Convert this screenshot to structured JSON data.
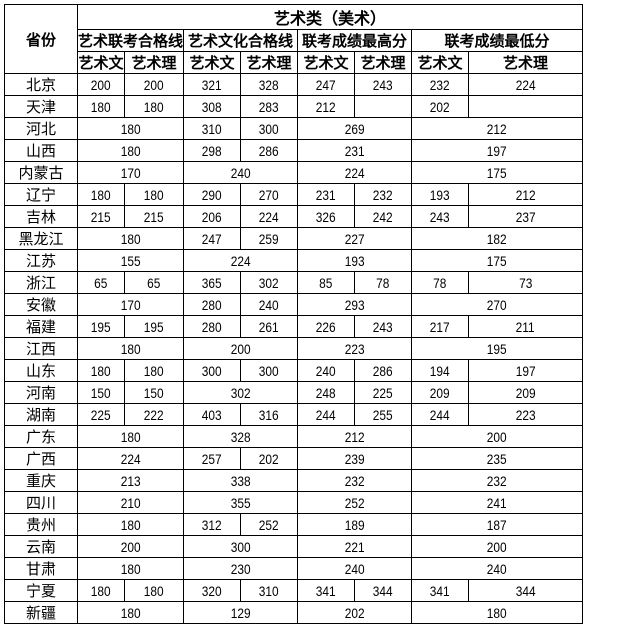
{
  "header": {
    "province_label": "省份",
    "category": "艺术类（美术）",
    "groups": [
      "艺术联考合格线",
      "艺术文化合格线",
      "联考成绩最高分",
      "联考成绩最低分"
    ],
    "sub": [
      "艺术文",
      "艺术理",
      "艺术文",
      "艺术理",
      "艺术文",
      "艺术理",
      "艺术文",
      "艺术理"
    ]
  },
  "rows": [
    {
      "province": "北京",
      "cells": [
        [
          "200",
          1
        ],
        [
          "200",
          1
        ],
        [
          "321",
          1
        ],
        [
          "328",
          1
        ],
        [
          "247",
          1
        ],
        [
          "243",
          1
        ],
        [
          "232",
          1
        ],
        [
          "224",
          1
        ]
      ]
    },
    {
      "province": "天津",
      "cells": [
        [
          "180",
          1
        ],
        [
          "180",
          1
        ],
        [
          "308",
          1
        ],
        [
          "283",
          1
        ],
        [
          "212",
          1
        ],
        [
          "",
          1
        ],
        [
          "202",
          1
        ],
        [
          "",
          1
        ]
      ]
    },
    {
      "province": "河北",
      "cells": [
        [
          "180",
          2
        ],
        [
          "310",
          1
        ],
        [
          "300",
          1
        ],
        [
          "269",
          2
        ],
        [
          "212",
          2
        ]
      ]
    },
    {
      "province": "山西",
      "cells": [
        [
          "180",
          2
        ],
        [
          "298",
          1
        ],
        [
          "286",
          1
        ],
        [
          "231",
          2
        ],
        [
          "197",
          2
        ]
      ]
    },
    {
      "province": "内蒙古",
      "cells": [
        [
          "170",
          2
        ],
        [
          "240",
          2
        ],
        [
          "224",
          2
        ],
        [
          "175",
          2
        ]
      ]
    },
    {
      "province": "辽宁",
      "cells": [
        [
          "180",
          1
        ],
        [
          "180",
          1
        ],
        [
          "290",
          1
        ],
        [
          "270",
          1
        ],
        [
          "231",
          1
        ],
        [
          "232",
          1
        ],
        [
          "193",
          1
        ],
        [
          "212",
          1
        ]
      ]
    },
    {
      "province": "吉林",
      "cells": [
        [
          "215",
          1
        ],
        [
          "215",
          1
        ],
        [
          "206",
          1
        ],
        [
          "224",
          1
        ],
        [
          "326",
          1
        ],
        [
          "242",
          1
        ],
        [
          "243",
          1
        ],
        [
          "237",
          1
        ]
      ]
    },
    {
      "province": "黑龙江",
      "cells": [
        [
          "180",
          2
        ],
        [
          "247",
          1
        ],
        [
          "259",
          1
        ],
        [
          "227",
          2
        ],
        [
          "182",
          2
        ]
      ]
    },
    {
      "province": "江苏",
      "cells": [
        [
          "155",
          2
        ],
        [
          "224",
          2
        ],
        [
          "193",
          2
        ],
        [
          "175",
          2
        ]
      ]
    },
    {
      "province": "浙江",
      "cells": [
        [
          "65",
          1
        ],
        [
          "65",
          1
        ],
        [
          "365",
          1
        ],
        [
          "302",
          1
        ],
        [
          "85",
          1
        ],
        [
          "78",
          1
        ],
        [
          "78",
          1
        ],
        [
          "73",
          1
        ]
      ]
    },
    {
      "province": "安徽",
      "cells": [
        [
          "170",
          2
        ],
        [
          "280",
          1
        ],
        [
          "240",
          1
        ],
        [
          "293",
          2
        ],
        [
          "270",
          2
        ]
      ]
    },
    {
      "province": "福建",
      "cells": [
        [
          "195",
          1
        ],
        [
          "195",
          1
        ],
        [
          "280",
          1
        ],
        [
          "261",
          1
        ],
        [
          "226",
          1
        ],
        [
          "243",
          1
        ],
        [
          "217",
          1
        ],
        [
          "211",
          1
        ]
      ]
    },
    {
      "province": "江西",
      "cells": [
        [
          "180",
          2
        ],
        [
          "200",
          2
        ],
        [
          "223",
          2
        ],
        [
          "195",
          2
        ]
      ]
    },
    {
      "province": "山东",
      "cells": [
        [
          "180",
          1
        ],
        [
          "180",
          1
        ],
        [
          "300",
          1
        ],
        [
          "300",
          1
        ],
        [
          "240",
          1
        ],
        [
          "286",
          1
        ],
        [
          "194",
          1
        ],
        [
          "197",
          1
        ]
      ]
    },
    {
      "province": "河南",
      "cells": [
        [
          "150",
          1
        ],
        [
          "150",
          1
        ],
        [
          "302",
          2
        ],
        [
          "248",
          1
        ],
        [
          "225",
          1
        ],
        [
          "209",
          1
        ],
        [
          "209",
          1
        ]
      ]
    },
    {
      "province": "湖南",
      "cells": [
        [
          "225",
          1
        ],
        [
          "222",
          1
        ],
        [
          "403",
          1
        ],
        [
          "316",
          1
        ],
        [
          "244",
          1
        ],
        [
          "255",
          1
        ],
        [
          "244",
          1
        ],
        [
          "223",
          1
        ]
      ]
    },
    {
      "province": "广东",
      "cells": [
        [
          "180",
          2
        ],
        [
          "328",
          2
        ],
        [
          "212",
          2
        ],
        [
          "200",
          2
        ]
      ]
    },
    {
      "province": "广西",
      "cells": [
        [
          "224",
          2
        ],
        [
          "257",
          1
        ],
        [
          "202",
          1
        ],
        [
          "239",
          2
        ],
        [
          "235",
          2
        ]
      ]
    },
    {
      "province": "重庆",
      "cells": [
        [
          "213",
          2
        ],
        [
          "338",
          2
        ],
        [
          "232",
          2
        ],
        [
          "232",
          2
        ]
      ]
    },
    {
      "province": "四川",
      "cells": [
        [
          "210",
          2
        ],
        [
          "355",
          2
        ],
        [
          "252",
          2
        ],
        [
          "241",
          2
        ]
      ]
    },
    {
      "province": "贵州",
      "cells": [
        [
          "180",
          2
        ],
        [
          "312",
          1
        ],
        [
          "252",
          1
        ],
        [
          "189",
          2
        ],
        [
          "187",
          2
        ]
      ]
    },
    {
      "province": "云南",
      "cells": [
        [
          "200",
          2
        ],
        [
          "300",
          2
        ],
        [
          "221",
          2
        ],
        [
          "200",
          2
        ]
      ]
    },
    {
      "province": "甘肃",
      "cells": [
        [
          "180",
          2
        ],
        [
          "230",
          2
        ],
        [
          "240",
          2
        ],
        [
          "240",
          2
        ]
      ]
    },
    {
      "province": "宁夏",
      "cells": [
        [
          "180",
          1
        ],
        [
          "180",
          1
        ],
        [
          "320",
          1
        ],
        [
          "310",
          1
        ],
        [
          "341",
          1
        ],
        [
          "344",
          1
        ],
        [
          "341",
          1
        ],
        [
          "344",
          1
        ]
      ]
    },
    {
      "province": "新疆",
      "cells": [
        [
          "180",
          2
        ],
        [
          "129",
          2
        ],
        [
          "202",
          2
        ],
        [
          "180",
          2
        ]
      ]
    }
  ]
}
